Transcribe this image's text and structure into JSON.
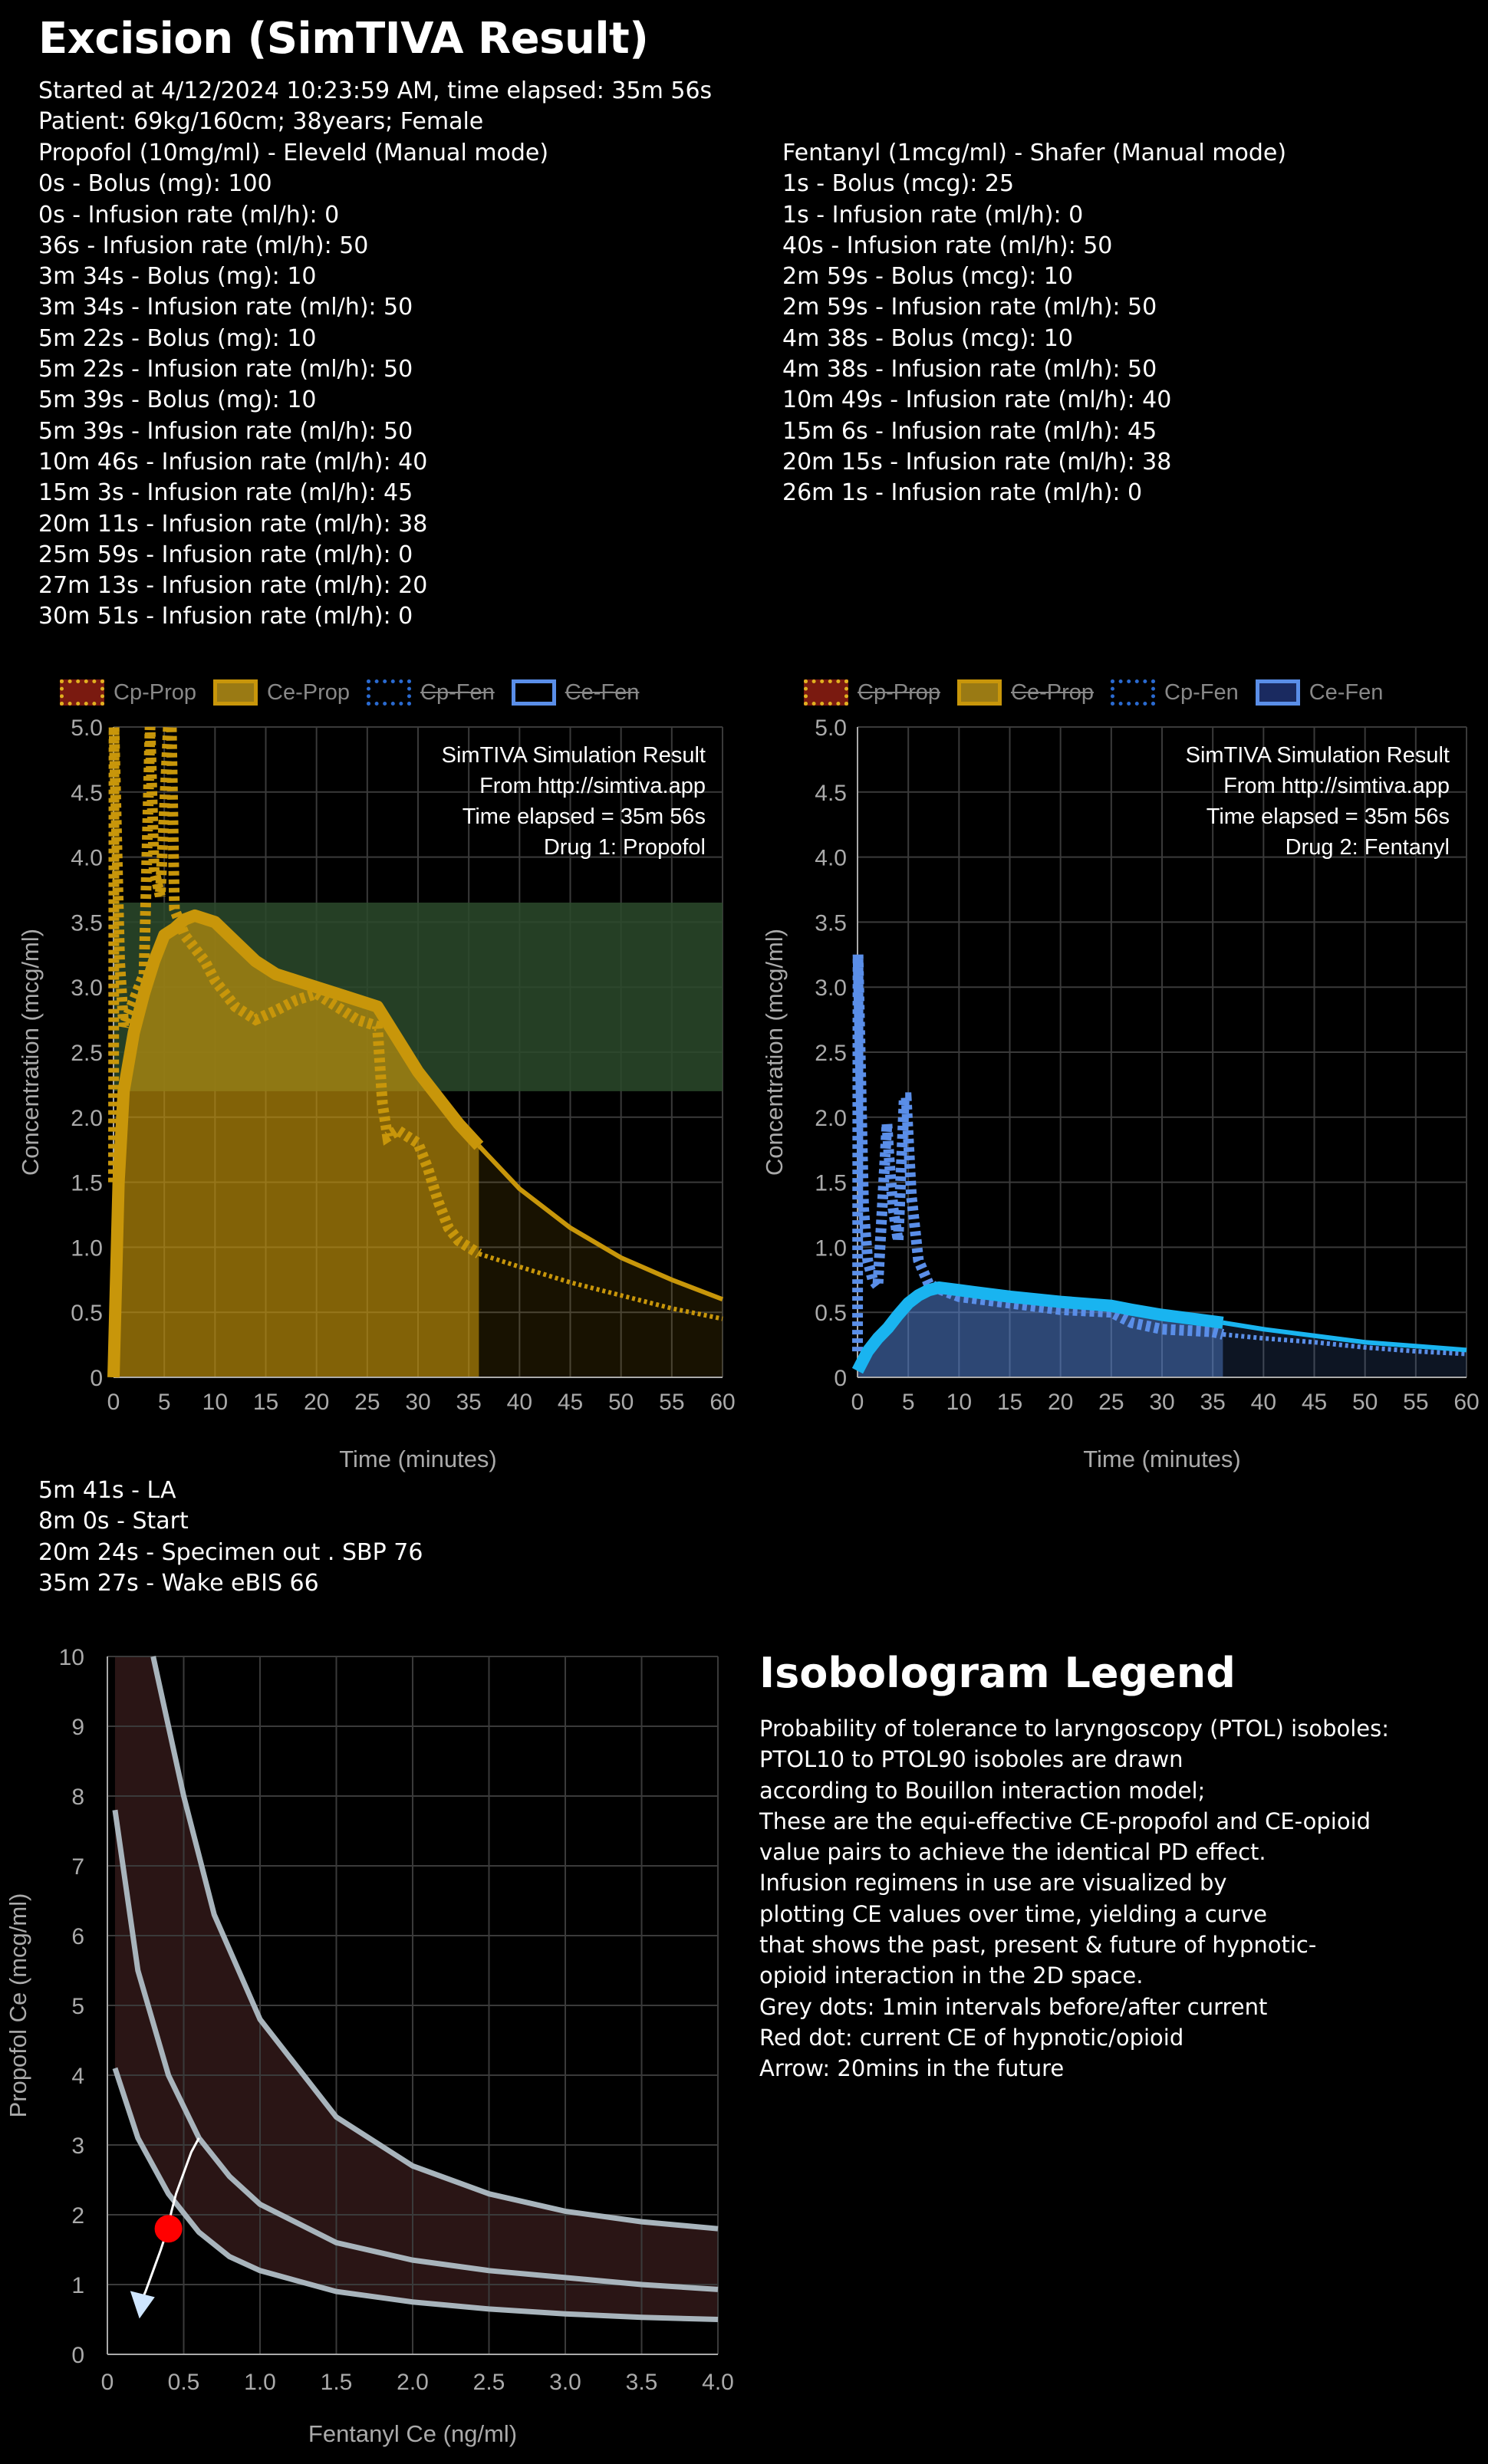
{
  "header": {
    "title": "Excision  (SimTIVA Result)",
    "started": "Started at 4/12/2024 10:23:59 AM, time elapsed: 35m 56s",
    "patient": "Patient: 69kg/160cm; 38years; Female"
  },
  "propofol": {
    "heading": "Propofol (10mg/ml) - Eleveld (Manual mode)",
    "events": [
      "0s - Bolus (mg): 100",
      "0s - Infusion rate (ml/h): 0",
      "36s - Infusion rate (ml/h): 50",
      "3m 34s - Bolus (mg): 10",
      "3m 34s - Infusion rate (ml/h): 50",
      "5m 22s - Bolus (mg): 10",
      "5m 22s - Infusion rate (ml/h): 50",
      "5m 39s - Bolus (mg): 10",
      "5m 39s - Infusion rate (ml/h): 50",
      "10m 46s - Infusion rate (ml/h): 40",
      "15m 3s - Infusion rate (ml/h): 45",
      "20m 11s - Infusion rate (ml/h): 38",
      "25m 59s - Infusion rate (ml/h): 0",
      "27m 13s - Infusion rate (ml/h): 20",
      "30m 51s - Infusion rate (ml/h): 0"
    ]
  },
  "fentanyl": {
    "heading": "Fentanyl (1mcg/ml) - Shafer (Manual mode)",
    "events": [
      "1s - Bolus (mcg): 25",
      "1s - Infusion rate (ml/h): 0",
      "40s - Infusion rate (ml/h): 50",
      "2m 59s - Bolus (mcg): 10",
      "2m 59s - Infusion rate (ml/h): 50",
      "4m 38s - Bolus (mcg): 10",
      "4m 38s - Infusion rate (ml/h): 50",
      "10m 49s - Infusion rate (ml/h): 40",
      "15m 6s - Infusion rate (ml/h): 45",
      "20m 15s - Infusion rate (ml/h): 38",
      "26m 1s - Infusion rate (ml/h): 0"
    ]
  },
  "legend_labels": [
    "Cp-Prop",
    "Ce-Prop",
    "Cp-Fen",
    "Ce-Fen"
  ],
  "colors": {
    "propofol": "#c8960a",
    "fentanyl": "#5a8ee8",
    "fentanyl_ce": "#19b4f0",
    "target_band": "#2c4a2c",
    "current_dot": "#ff0000"
  },
  "charts": {
    "left_annotation": [
      "SimTIVA Simulation Result",
      "From http://simtiva.app",
      "Time elapsed = 35m 56s",
      "Drug 1: Propofol"
    ],
    "right_annotation": [
      "SimTIVA Simulation Result",
      "From http://simtiva.app",
      "Time elapsed = 35m 56s",
      "Drug 2: Fentanyl"
    ],
    "ylabel": "Concentration (mcg/ml)",
    "xlabel": "Time (minutes)",
    "xticks": [
      "0",
      "5",
      "10",
      "15",
      "20",
      "25",
      "30",
      "35",
      "40",
      "45",
      "50",
      "55",
      "60"
    ],
    "yticks": [
      "0",
      "0.5",
      "1.0",
      "1.5",
      "2.0",
      "2.5",
      "3.0",
      "3.5",
      "4.0",
      "4.5",
      "5.0"
    ]
  },
  "chart_data": [
    {
      "type": "line",
      "title": "Drug 1: Propofol",
      "xlabel": "Time (minutes)",
      "ylabel": "Concentration (mcg/ml)",
      "xlim": [
        0,
        60
      ],
      "ylim": [
        0,
        5
      ],
      "legend": "top-left",
      "grid": true,
      "target_band": [
        2.2,
        3.65
      ],
      "series": [
        {
          "name": "Cp-Prop",
          "x": [
            0,
            0.05,
            0.6,
            1,
            2,
            3,
            3.6,
            4,
            4.6,
            5.4,
            5.7,
            6,
            7,
            8,
            9,
            10,
            12,
            14,
            16,
            18,
            20,
            22,
            24,
            26,
            26.5,
            27,
            28,
            29,
            30,
            31,
            32,
            33,
            34,
            35,
            36,
            40,
            45,
            50,
            55,
            60
          ],
          "y": [
            1.5,
            5,
            3.2,
            2.7,
            2.9,
            3.1,
            5,
            3.9,
            3.7,
            5,
            5,
            3.6,
            3.4,
            3.3,
            3.2,
            3.05,
            2.85,
            2.75,
            2.82,
            2.9,
            2.95,
            2.85,
            2.75,
            2.7,
            2.1,
            1.85,
            1.9,
            1.85,
            1.8,
            1.6,
            1.35,
            1.15,
            1.05,
            1.0,
            0.95,
            0.85,
            0.73,
            0.63,
            0.53,
            0.45
          ]
        },
        {
          "name": "Ce-Prop",
          "x": [
            0,
            0.5,
            1,
            2,
            3,
            4,
            5,
            6,
            7,
            8,
            10,
            12,
            14,
            16,
            18,
            20,
            22,
            24,
            26,
            28,
            30,
            32,
            34,
            36,
            40,
            45,
            50,
            55,
            60
          ],
          "y": [
            0,
            1.5,
            2.2,
            2.65,
            2.95,
            3.2,
            3.4,
            3.45,
            3.52,
            3.55,
            3.5,
            3.35,
            3.2,
            3.1,
            3.05,
            3.0,
            2.95,
            2.9,
            2.85,
            2.6,
            2.35,
            2.15,
            1.95,
            1.78,
            1.45,
            1.15,
            0.92,
            0.75,
            0.6
          ]
        }
      ]
    },
    {
      "type": "line",
      "title": "Drug 2: Fentanyl",
      "xlabel": "Time (minutes)",
      "ylabel": "Concentration (mcg/ml)",
      "xlim": [
        0,
        60
      ],
      "ylim": [
        0,
        5
      ],
      "legend": "top-left",
      "grid": true,
      "series": [
        {
          "name": "Cp-Fen",
          "x": [
            0,
            0.05,
            0.6,
            1,
            1.5,
            2,
            2.9,
            3.1,
            3.5,
            4,
            4.6,
            4.8,
            5.3,
            6,
            7,
            8,
            10,
            15,
            20,
            25,
            27,
            30,
            35,
            36,
            40,
            45,
            50,
            55,
            60
          ],
          "y": [
            0.2,
            3.25,
            1.3,
            0.9,
            0.75,
            0.7,
            1.95,
            1.7,
            1.3,
            1.05,
            2.15,
            2.15,
            1.4,
            0.9,
            0.72,
            0.68,
            0.62,
            0.57,
            0.52,
            0.5,
            0.42,
            0.37,
            0.35,
            0.33,
            0.3,
            0.27,
            0.23,
            0.2,
            0.18
          ]
        },
        {
          "name": "Ce-Fen",
          "x": [
            0,
            1,
            2,
            3,
            4,
            5,
            6,
            7,
            8,
            10,
            15,
            20,
            25,
            27,
            30,
            33,
            36,
            40,
            45,
            50,
            55,
            60
          ],
          "y": [
            0.05,
            0.2,
            0.3,
            0.38,
            0.48,
            0.57,
            0.63,
            0.67,
            0.69,
            0.67,
            0.62,
            0.58,
            0.55,
            0.52,
            0.48,
            0.45,
            0.42,
            0.37,
            0.32,
            0.27,
            0.24,
            0.21
          ]
        }
      ]
    },
    {
      "type": "line",
      "title": "",
      "xlabel": "Fentanyl Ce (ng/ml)",
      "ylabel": "Propofol Ce (mcg/ml)",
      "xlim": [
        0,
        4.0
      ],
      "ylim": [
        0,
        10
      ],
      "grid": true,
      "xticks": [
        "0",
        "0.5",
        "1.0",
        "1.5",
        "2.0",
        "2.5",
        "3.0",
        "3.5",
        "4.0"
      ],
      "yticks": [
        "0",
        "1",
        "2",
        "3",
        "4",
        "5",
        "6",
        "7",
        "8",
        "9",
        "10"
      ],
      "series": [
        {
          "name": "",
          "x": [
            0.05,
            0.2,
            0.4,
            0.6,
            0.8,
            1.0,
            1.5,
            2.0,
            2.5,
            3.0,
            3.5,
            4.0
          ],
          "y": [
            4.1,
            3.1,
            2.3,
            1.75,
            1.4,
            1.2,
            0.9,
            0.75,
            0.65,
            0.58,
            0.53,
            0.5
          ]
        },
        {
          "name": "",
          "x": [
            0.05,
            0.2,
            0.4,
            0.6,
            0.8,
            1.0,
            1.5,
            2.0,
            2.5,
            3.0,
            3.5,
            4.0
          ],
          "y": [
            7.8,
            5.5,
            4.0,
            3.1,
            2.55,
            2.15,
            1.6,
            1.35,
            1.2,
            1.1,
            1.0,
            0.93
          ]
        },
        {
          "name": "",
          "x": [
            0.3,
            0.5,
            0.7,
            1.0,
            1.5,
            2.0,
            2.5,
            3.0,
            3.5,
            4.0
          ],
          "y": [
            10,
            8.0,
            6.3,
            4.8,
            3.4,
            2.7,
            2.3,
            2.05,
            1.9,
            1.8
          ]
        },
        {
          "name": "",
          "x": [
            0.6,
            0.55,
            0.5,
            0.45,
            0.42,
            0.4,
            0.38,
            0.35,
            0.3,
            0.25,
            0.22
          ],
          "y": [
            3.1,
            2.9,
            2.6,
            2.3,
            2.05,
            1.85,
            1.7,
            1.5,
            1.2,
            0.9,
            0.75
          ]
        }
      ],
      "current_point": {
        "x": 0.4,
        "y": 1.8
      }
    }
  ],
  "events_log": [
    "5m 41s - LA",
    "8m 0s - Start",
    "20m 24s - Specimen out . SBP 76",
    "35m 27s - Wake eBIS 66"
  ],
  "isobologram": {
    "title": "Isobologram Legend",
    "lines": [
      "Probability of tolerance to laryngoscopy (PTOL) isoboles:",
      "PTOL10 to PTOL90 isoboles are drawn",
      "according to Bouillon interaction model;",
      "These are the equi-effective CE-propofol and CE-opioid",
      "value pairs to achieve the identical PD effect.",
      "Infusion regimens in use are visualized by",
      "plotting CE values over time, yielding a curve",
      "that shows the past, present & future of hypnotic-",
      "opioid interaction in the 2D space.",
      "Grey dots: 1min intervals before/after current",
      "Red dot: current CE of hypnotic/opioid",
      "Arrow: 20mins in the future"
    ],
    "xlabel": "Fentanyl Ce (ng/ml)",
    "ylabel": "Propofol Ce (mcg/ml)"
  }
}
